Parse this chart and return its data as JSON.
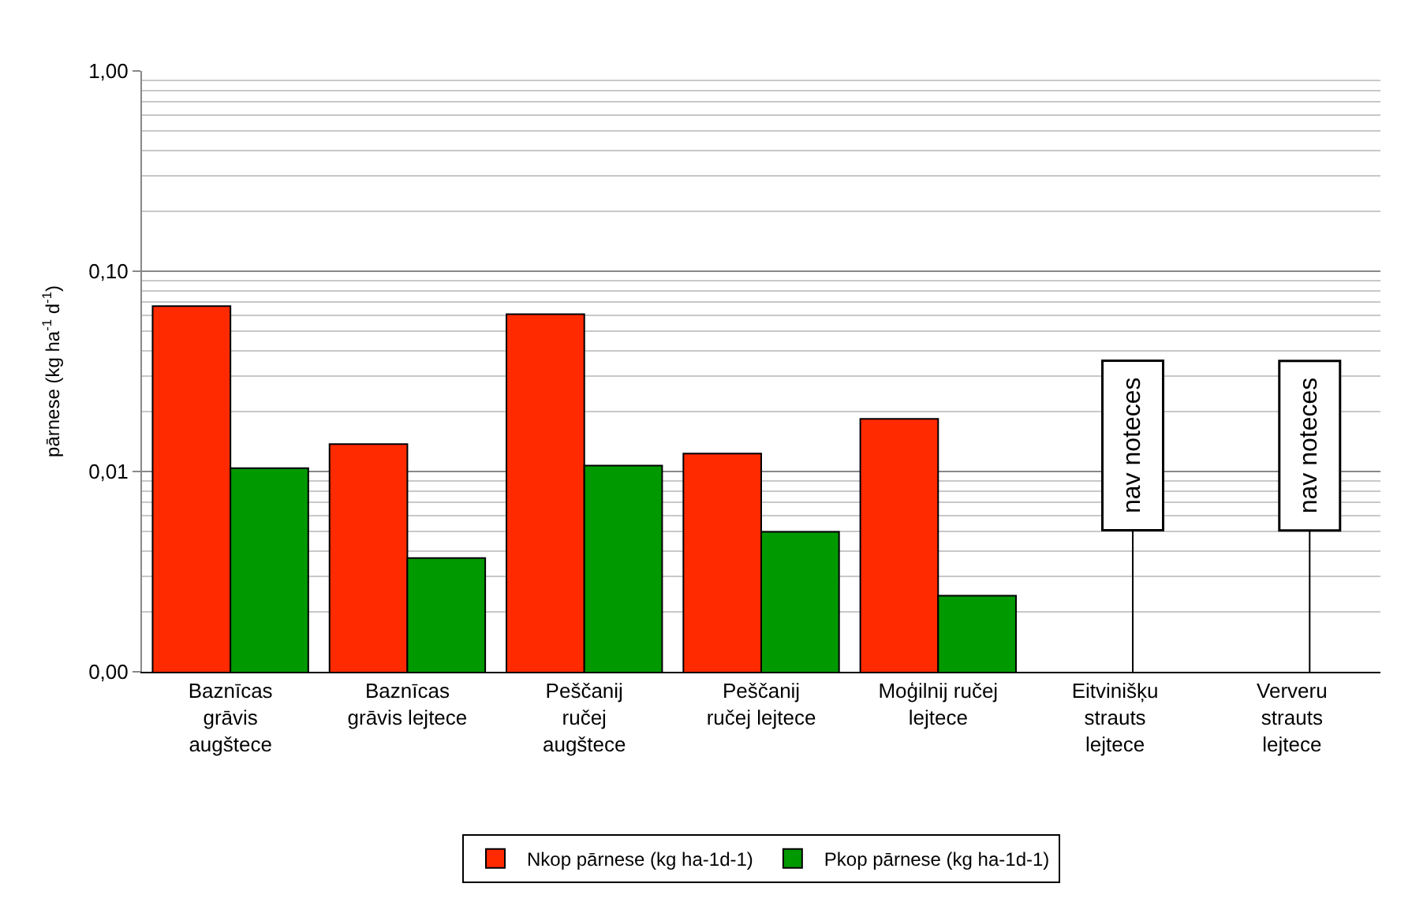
{
  "chart_data": {
    "type": "bar",
    "ylabel": "pārnese (kg ha$^{-1}$ d$^{-1}$)",
    "log": true,
    "grid": "y",
    "legend": "bottom",
    "categories": [
      "Baznīcas\ngrāvis\naugštece",
      "Baznīcas\ngrāvis lejtece",
      "Peščanij\nručej\naugštece",
      "Peščanij\nručej lejtece",
      "Moģilnij ručej\nlejtece",
      "Eitvinišķu\nstrauts\nlejtece",
      "Ververu\nstrauts\nlejtece"
    ],
    "series": [
      {
        "name": "Nkop pārnese (kg ha-1d-1)",
        "color": "#ff2a00",
        "values": [
          0.067,
          0.0137,
          0.061,
          0.0123,
          0.0183,
          null,
          null
        ]
      },
      {
        "name": "Pkop pārnese (kg ha-1d-1)",
        "color": "#009900",
        "values": [
          0.0104,
          0.0037,
          0.0107,
          0.005,
          0.0024,
          null,
          null
        ]
      }
    ],
    "ylim": [
      0.001,
      1
    ],
    "yticks": [
      {
        "value": 0.001,
        "label": "0,00"
      },
      {
        "value": 0.002,
        "label": null
      },
      {
        "value": 0.003,
        "label": null
      },
      {
        "value": 0.004,
        "label": null
      },
      {
        "value": 0.005,
        "label": null
      },
      {
        "value": 0.006,
        "label": null
      },
      {
        "value": 0.007,
        "label": null
      },
      {
        "value": 0.008,
        "label": null
      },
      {
        "value": 0.009,
        "label": null
      },
      {
        "value": 0.01,
        "label": "0,01"
      },
      {
        "value": 0.02,
        "label": null
      },
      {
        "value": 0.03,
        "label": null
      },
      {
        "value": 0.04,
        "label": null
      },
      {
        "value": 0.05,
        "label": null
      },
      {
        "value": 0.06,
        "label": null
      },
      {
        "value": 0.07,
        "label": null
      },
      {
        "value": 0.08,
        "label": null
      },
      {
        "value": 0.09,
        "label": null
      },
      {
        "value": 0.1,
        "label": "0,10"
      },
      {
        "value": 0.2,
        "label": null
      },
      {
        "value": 0.3,
        "label": null
      },
      {
        "value": 0.4,
        "label": null
      },
      {
        "value": 0.5,
        "label": null
      },
      {
        "value": 0.6,
        "label": null
      },
      {
        "value": 0.7,
        "label": null
      },
      {
        "value": 0.8,
        "label": null
      },
      {
        "value": 0.9,
        "label": null
      },
      {
        "value": 1,
        "label": "1,00"
      }
    ],
    "annotations": [
      "nav noteces",
      "nav noteces"
    ]
  }
}
